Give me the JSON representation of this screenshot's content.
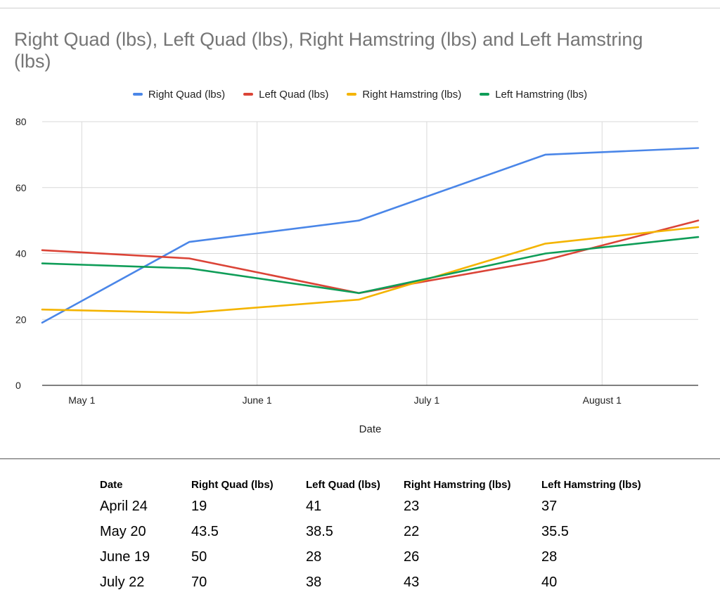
{
  "chart_data": {
    "type": "line",
    "title": "Right Quad (lbs), Left Quad (lbs), Right Hamstring (lbs) and Left Hamstring (lbs)",
    "xlabel": "Date",
    "ylabel": "",
    "x": [
      "2023-04-24",
      "2023-05-20",
      "2023-06-19",
      "2023-07-22",
      "2023-08-18"
    ],
    "x_ticks": [
      {
        "date": "2023-05-01",
        "label": "May 1"
      },
      {
        "date": "2023-06-01",
        "label": "June 1"
      },
      {
        "date": "2023-07-01",
        "label": "July 1"
      },
      {
        "date": "2023-08-01",
        "label": "August 1"
      }
    ],
    "xlim": [
      "2023-04-24",
      "2023-08-18"
    ],
    "ylim": [
      0,
      80
    ],
    "y_ticks": [
      0,
      20,
      40,
      60,
      80
    ],
    "grid": true,
    "legend_position": "top",
    "series": [
      {
        "name": "Right Quad (lbs)",
        "color": "#4a86e8",
        "values": [
          19,
          43.5,
          50,
          70,
          72
        ]
      },
      {
        "name": "Left Quad (lbs)",
        "color": "#db4437",
        "values": [
          41,
          38.5,
          28,
          38,
          50
        ]
      },
      {
        "name": "Right Hamstring (lbs)",
        "color": "#f4b400",
        "values": [
          23,
          22,
          26,
          43,
          48
        ]
      },
      {
        "name": "Left Hamstring (lbs)",
        "color": "#0f9d58",
        "values": [
          37,
          35.5,
          28,
          40,
          45
        ]
      }
    ]
  },
  "table": {
    "headers": [
      "Date",
      "Right Quad (lbs)",
      "Left Quad (lbs)",
      "Right Hamstring (lbs)",
      "Left Hamstring (lbs)"
    ],
    "rows": [
      [
        "April 24",
        "19",
        "41",
        "23",
        "37"
      ],
      [
        "May 20",
        "43.5",
        "38.5",
        "22",
        "35.5"
      ],
      [
        "June 19",
        "50",
        "28",
        "26",
        "28"
      ],
      [
        "July 22",
        "70",
        "38",
        "43",
        "40"
      ]
    ]
  }
}
